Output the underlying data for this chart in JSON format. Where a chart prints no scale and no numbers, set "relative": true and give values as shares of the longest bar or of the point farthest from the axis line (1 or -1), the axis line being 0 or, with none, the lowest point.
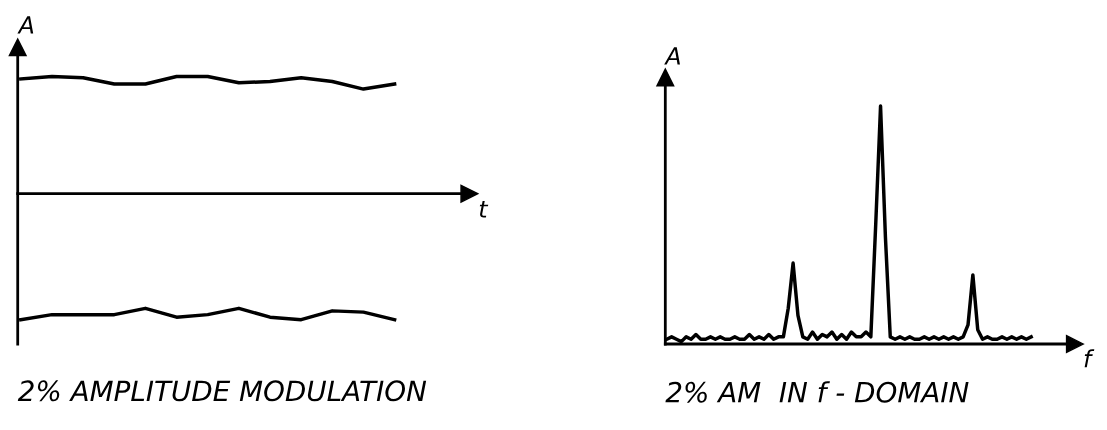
{
  "chart_data": [
    {
      "type": "line",
      "title": "2% AMPLITUDE MODULATION",
      "xlabel": "t",
      "ylabel": "A",
      "relative": true,
      "marker": "none",
      "line_style": "solid",
      "categories": [
        null,
        null,
        null,
        null,
        null,
        null,
        null,
        null,
        null,
        null,
        null,
        null,
        null
      ],
      "series": [
        {
          "color": "#000000",
          "values": [
            0.91,
            0.93,
            0.92,
            0.87,
            0.87,
            0.93,
            0.93,
            0.88,
            0.89,
            0.92,
            0.89,
            0.83,
            0.87
          ]
        },
        {
          "color": "#000000",
          "values": [
            -1.0,
            -0.96,
            -0.96,
            -0.96,
            -0.91,
            -0.98,
            -0.96,
            -0.91,
            -0.98,
            -1.0,
            -0.93,
            -0.94,
            -1.0
          ]
        }
      ]
    },
    {
      "type": "line",
      "title": "2% AM  IN f - DOMAIN",
      "xlabel": "f",
      "ylabel": "A",
      "relative": true,
      "marker": "none",
      "line_style": "solid",
      "categories": [
        null,
        null,
        null,
        null,
        null,
        null,
        null,
        null,
        null,
        null,
        null,
        null,
        null,
        null,
        null,
        null,
        null,
        null,
        null,
        null,
        null,
        null,
        null,
        null,
        null,
        null,
        null,
        null,
        null,
        null,
        null,
        null,
        null,
        null,
        null,
        null,
        null,
        null,
        null,
        null,
        null,
        null,
        null,
        null,
        null,
        null,
        null,
        null,
        null,
        null,
        null,
        null,
        null,
        null,
        null,
        null,
        null,
        null,
        null,
        null,
        null,
        null,
        null,
        null,
        null,
        null,
        null,
        null,
        null,
        null,
        null,
        null,
        null,
        null,
        null,
        null
      ],
      "series": [
        {
          "color": "#000000",
          "values": [
            0.02,
            0.03,
            0.02,
            0.01,
            0.03,
            0.02,
            0.04,
            0.02,
            0.02,
            0.03,
            0.02,
            0.03,
            0.02,
            0.02,
            0.03,
            0.02,
            0.02,
            0.04,
            0.02,
            0.03,
            0.02,
            0.04,
            0.02,
            0.03,
            0.03,
            0.15,
            0.34,
            0.12,
            0.03,
            0.02,
            0.05,
            0.02,
            0.04,
            0.03,
            0.05,
            0.02,
            0.04,
            0.02,
            0.05,
            0.03,
            0.03,
            0.05,
            0.03,
            0.5,
            1.0,
            0.45,
            0.03,
            0.02,
            0.03,
            0.02,
            0.03,
            0.02,
            0.02,
            0.03,
            0.02,
            0.03,
            0.02,
            0.03,
            0.02,
            0.03,
            0.02,
            0.03,
            0.08,
            0.29,
            0.06,
            0.02,
            0.03,
            0.02,
            0.02,
            0.03,
            0.02,
            0.03,
            0.02,
            0.03,
            0.02,
            0.03
          ]
        }
      ]
    }
  ]
}
